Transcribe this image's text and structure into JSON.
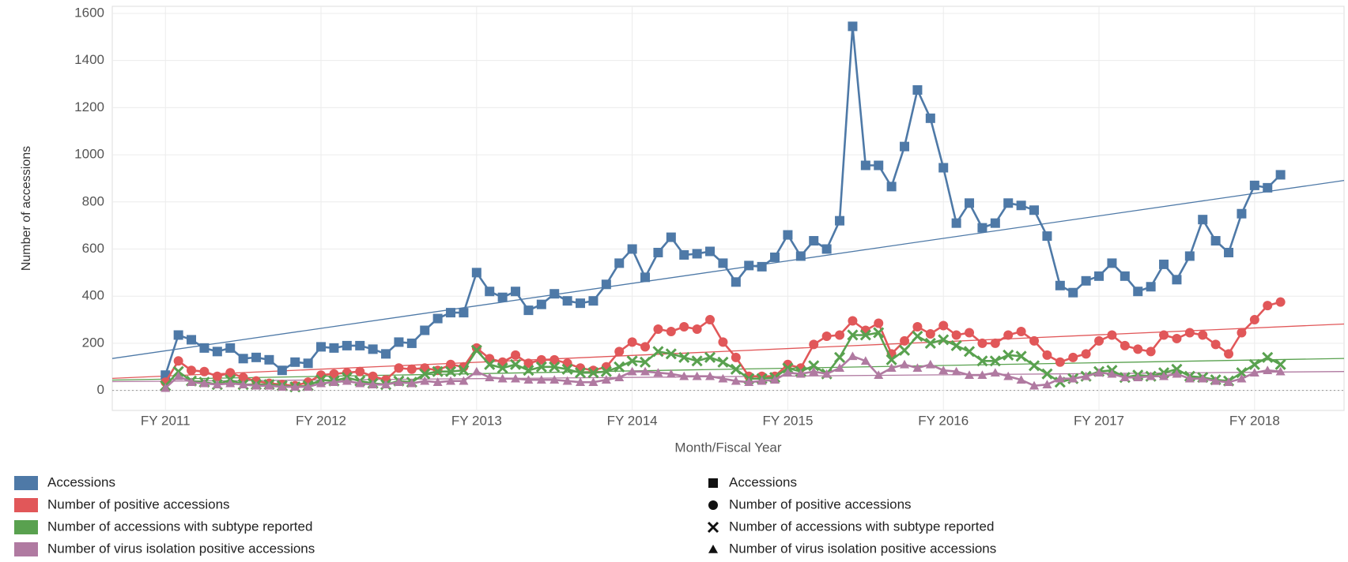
{
  "chart_data": {
    "type": "line",
    "x_label": "Month/Fiscal Year",
    "y_label": "Number of accessions",
    "categories": [
      "FY 2011",
      null,
      null,
      null,
      null,
      null,
      null,
      null,
      null,
      null,
      null,
      null,
      "FY 2012",
      null,
      null,
      null,
      null,
      null,
      null,
      null,
      null,
      null,
      null,
      null,
      "FY 2013",
      null,
      null,
      null,
      null,
      null,
      null,
      null,
      null,
      null,
      null,
      null,
      "FY 2014",
      null,
      null,
      null,
      null,
      null,
      null,
      null,
      null,
      null,
      null,
      null,
      "FY 2015",
      null,
      null,
      null,
      null,
      null,
      null,
      null,
      null,
      null,
      null,
      null,
      "FY 2016",
      null,
      null,
      null,
      null,
      null,
      null,
      null,
      null,
      null,
      null,
      null,
      "FY 2017",
      null,
      null,
      null,
      null,
      null,
      null,
      null,
      null,
      null,
      null,
      null,
      "FY 2018",
      null,
      null
    ],
    "ylim": [
      -85,
      1630
    ],
    "yticks": [
      0,
      200,
      400,
      600,
      800,
      1000,
      1200,
      1400,
      1600
    ],
    "grid": true,
    "series": [
      {
        "name": "Accessions",
        "color": "#4e79a7",
        "marker": "square",
        "trend": [
          168,
          852
        ],
        "values": [
          65,
          235,
          215,
          180,
          165,
          180,
          135,
          140,
          130,
          85,
          120,
          115,
          185,
          180,
          190,
          190,
          175,
          155,
          205,
          200,
          255,
          305,
          330,
          330,
          500,
          420,
          395,
          420,
          340,
          365,
          410,
          380,
          370,
          380,
          450,
          540,
          600,
          480,
          585,
          650,
          575,
          580,
          590,
          540,
          460,
          530,
          525,
          565,
          660,
          570,
          635,
          600,
          720,
          1545,
          955,
          955,
          865,
          1035,
          1275,
          1155,
          945,
          710,
          795,
          690,
          710,
          795,
          785,
          765,
          655,
          445,
          415,
          465,
          485,
          540,
          485,
          420,
          440,
          535,
          470,
          570,
          725,
          635,
          585,
          750,
          870,
          860,
          915
        ]
      },
      {
        "name": "Number of positive accessions",
        "color": "#e15759",
        "marker": "circle",
        "trend": [
          61,
          270
        ],
        "values": [
          35,
          125,
          85,
          80,
          60,
          75,
          55,
          40,
          30,
          25,
          20,
          35,
          65,
          70,
          75,
          80,
          60,
          45,
          95,
          90,
          95,
          85,
          110,
          100,
          180,
          135,
          120,
          150,
          115,
          130,
          130,
          115,
          95,
          85,
          100,
          165,
          205,
          185,
          260,
          250,
          270,
          260,
          300,
          205,
          140,
          60,
          60,
          60,
          110,
          95,
          195,
          230,
          235,
          295,
          255,
          285,
          155,
          210,
          270,
          240,
          275,
          235,
          245,
          200,
          200,
          235,
          250,
          210,
          150,
          120,
          140,
          155,
          210,
          235,
          190,
          175,
          165,
          235,
          220,
          245,
          235,
          195,
          155,
          245,
          300,
          360,
          375
        ]
      },
      {
        "name": "Number of accessions with subtype reported",
        "color": "#59a14f",
        "marker": "cross",
        "trend": [
          48,
          131
        ],
        "values": [
          20,
          80,
          40,
          35,
          25,
          45,
          25,
          25,
          25,
          20,
          15,
          20,
          45,
          40,
          55,
          40,
          30,
          25,
          40,
          35,
          70,
          80,
          80,
          85,
          170,
          110,
          95,
          110,
          85,
          100,
          100,
          90,
          75,
          75,
          80,
          100,
          125,
          120,
          165,
          155,
          140,
          125,
          140,
          120,
          90,
          50,
          50,
          55,
          95,
          80,
          105,
          70,
          140,
          235,
          235,
          245,
          130,
          170,
          230,
          200,
          215,
          190,
          165,
          125,
          125,
          150,
          145,
          105,
          70,
          35,
          50,
          60,
          80,
          85,
          55,
          65,
          60,
          75,
          90,
          60,
          55,
          45,
          40,
          75,
          110,
          140,
          110
        ]
      },
      {
        "name": "Number of virus isolation positive accessions",
        "color": "#b07aa1",
        "marker": "triangle",
        "trend": [
          39,
          78
        ],
        "values": [
          10,
          60,
          35,
          30,
          25,
          30,
          25,
          20,
          20,
          15,
          15,
          15,
          30,
          35,
          40,
          30,
          25,
          25,
          35,
          30,
          40,
          35,
          40,
          40,
          80,
          55,
          50,
          50,
          45,
          45,
          45,
          40,
          35,
          35,
          45,
          55,
          80,
          80,
          75,
          70,
          60,
          60,
          60,
          50,
          40,
          35,
          40,
          45,
          75,
          70,
          80,
          70,
          95,
          145,
          125,
          65,
          95,
          110,
          95,
          110,
          85,
          80,
          65,
          65,
          75,
          60,
          45,
          20,
          25,
          50,
          50,
          60,
          75,
          70,
          55,
          55,
          60,
          60,
          70,
          50,
          50,
          40,
          35,
          50,
          75,
          85,
          80
        ]
      }
    ]
  }
}
